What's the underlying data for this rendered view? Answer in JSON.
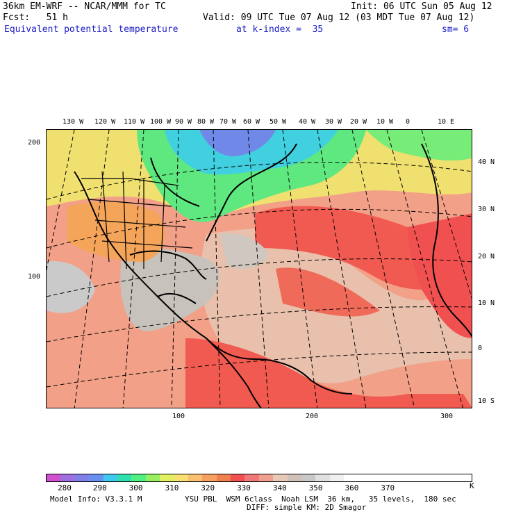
{
  "header": {
    "model_title": "36km EM-WRF -- NCAR/MMM for TC",
    "init": "Init: 06 UTC Sun 05 Aug 12",
    "forecast": "Fcst:   51 h",
    "valid": "Valid: 09 UTC Tue 07 Aug 12 (03 MDT Tue 07 Aug 12)",
    "field": "Equivalent potential temperature",
    "level": "at k-index =  35",
    "smoothing": "sm= 6"
  },
  "map": {
    "top_longitudes": [
      "130 W",
      "120 W",
      "110 W",
      "100 W",
      "90 W",
      "80 W",
      "70 W",
      "60 W",
      "50 W",
      "40 W",
      "30 W",
      "20 W",
      "10 W",
      "0",
      "10 E"
    ],
    "right_latitudes": [
      "40 N",
      "30 N",
      "20 N",
      "10 N",
      "0",
      "10 S"
    ],
    "left_grid": [
      "200",
      "100"
    ],
    "bottom_grid": [
      "100",
      "200",
      "300"
    ]
  },
  "legend": {
    "colors": [
      "#d050d0",
      "#a070e0",
      "#8080e8",
      "#6890f0",
      "#40c8f0",
      "#30e0b0",
      "#50f080",
      "#98f060",
      "#e0f060",
      "#f8e070",
      "#f8c070",
      "#f8a060",
      "#f08050",
      "#f05050",
      "#f07878",
      "#f0a090",
      "#e8c8b8",
      "#d0c0b8",
      "#c8c8c8",
      "#e0e0e0",
      "#f0f0f0",
      "#ffffff",
      "#ffffff",
      "#ffffff",
      "#ffffff",
      "#ffffff",
      "#ffffff",
      "#ffffff",
      "#ffffff",
      "#ffffff"
    ],
    "labels": [
      "280",
      "290",
      "300",
      "310",
      "320",
      "330",
      "340",
      "350",
      "360",
      "370"
    ],
    "end_unit": "K"
  },
  "footer": {
    "model_info": "Model Info: V3.3.1 M",
    "physics": "YSU PBL  WSM 6class  Noah LSM  36 km,   35 levels,  180 sec",
    "diffusion": "DIFF: simple KM: 2D Smagor"
  }
}
